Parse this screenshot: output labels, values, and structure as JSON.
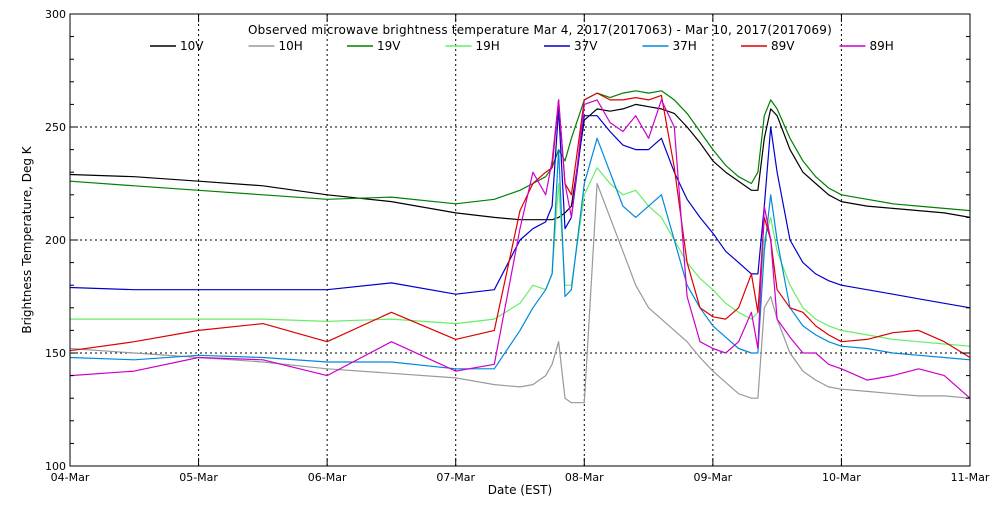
{
  "chart_data": {
    "type": "line",
    "title": "Observed microwave brightness temperature Mar  4, 2017(2017063) - Mar 10, 2017(2017069)",
    "xlabel": "Date (EST)",
    "ylabel": "Brightness Temperature, Deg K",
    "xlim": [
      "2017-03-04",
      "2017-03-11"
    ],
    "ylim": [
      100,
      300
    ],
    "x_ticks": [
      "04-Mar",
      "05-Mar",
      "06-Mar",
      "07-Mar",
      "08-Mar",
      "09-Mar",
      "10-Mar",
      "11-Mar"
    ],
    "y_ticks": [
      100,
      150,
      200,
      250,
      300
    ],
    "grid": "dotted",
    "legend_position": "top",
    "x": [
      4.0,
      4.5,
      5.0,
      5.5,
      6.0,
      6.5,
      7.0,
      7.3,
      7.5,
      7.6,
      7.7,
      7.75,
      7.8,
      7.85,
      7.9,
      8.0,
      8.1,
      8.2,
      8.3,
      8.4,
      8.5,
      8.6,
      8.7,
      8.8,
      8.9,
      9.0,
      9.1,
      9.2,
      9.3,
      9.35,
      9.4,
      9.45,
      9.5,
      9.6,
      9.7,
      9.8,
      9.9,
      10.0,
      10.2,
      10.4,
      10.6,
      10.8,
      11.0
    ],
    "series": [
      {
        "name": "10V",
        "color": "#000000",
        "values": [
          229,
          228,
          226,
          224,
          220,
          217,
          212,
          210,
          209,
          209,
          209,
          209,
          210,
          212,
          215,
          253,
          258,
          257,
          258,
          260,
          259,
          258,
          256,
          250,
          243,
          235,
          230,
          226,
          222,
          222,
          245,
          258,
          255,
          240,
          230,
          225,
          220,
          217,
          215,
          214,
          213,
          212,
          210
        ]
      },
      {
        "name": "10H",
        "color": "#999999",
        "values": [
          152,
          150,
          148,
          146,
          143,
          141,
          139,
          136,
          135,
          136,
          140,
          145,
          155,
          130,
          128,
          128,
          225,
          210,
          195,
          180,
          170,
          165,
          160,
          155,
          148,
          142,
          137,
          132,
          130,
          130,
          170,
          175,
          165,
          150,
          142,
          138,
          135,
          134,
          133,
          132,
          131,
          131,
          130
        ]
      },
      {
        "name": "19V",
        "color": "#008000",
        "values": [
          226,
          224,
          222,
          220,
          218,
          219,
          216,
          218,
          222,
          225,
          228,
          232,
          240,
          235,
          245,
          262,
          265,
          263,
          265,
          266,
          265,
          266,
          262,
          256,
          248,
          240,
          233,
          228,
          225,
          230,
          255,
          262,
          258,
          245,
          235,
          228,
          223,
          220,
          218,
          216,
          215,
          214,
          213
        ]
      },
      {
        "name": "19H",
        "color": "#66ee66",
        "values": [
          165,
          165,
          165,
          165,
          164,
          165,
          163,
          165,
          172,
          180,
          178,
          185,
          225,
          180,
          180,
          220,
          232,
          225,
          220,
          222,
          215,
          210,
          200,
          190,
          183,
          178,
          172,
          168,
          165,
          168,
          200,
          210,
          195,
          180,
          170,
          165,
          162,
          160,
          158,
          156,
          155,
          154,
          153
        ]
      },
      {
        "name": "37V",
        "color": "#0000cc",
        "values": [
          179,
          178,
          178,
          178,
          178,
          181,
          176,
          178,
          200,
          205,
          208,
          215,
          258,
          205,
          210,
          255,
          255,
          248,
          242,
          240,
          240,
          245,
          230,
          218,
          210,
          203,
          195,
          190,
          185,
          185,
          215,
          250,
          230,
          200,
          190,
          185,
          182,
          180,
          178,
          176,
          174,
          172,
          170
        ]
      },
      {
        "name": "37H",
        "color": "#0088dd",
        "values": [
          148,
          147,
          149,
          148,
          146,
          146,
          143,
          143,
          160,
          170,
          178,
          185,
          240,
          175,
          178,
          225,
          245,
          230,
          215,
          210,
          215,
          220,
          200,
          180,
          170,
          162,
          157,
          152,
          150,
          150,
          195,
          220,
          200,
          170,
          162,
          158,
          155,
          153,
          152,
          150,
          149,
          148,
          147
        ]
      },
      {
        "name": "89V",
        "color": "#dd0000",
        "values": [
          151,
          155,
          160,
          163,
          155,
          168,
          156,
          160,
          213,
          225,
          230,
          232,
          262,
          225,
          220,
          262,
          265,
          262,
          262,
          263,
          262,
          264,
          232,
          190,
          170,
          166,
          165,
          170,
          185,
          168,
          210,
          200,
          178,
          170,
          168,
          162,
          158,
          155,
          156,
          159,
          160,
          155,
          148
        ]
      },
      {
        "name": "89H",
        "color": "#cc00cc",
        "values": [
          140,
          142,
          148,
          147,
          140,
          155,
          142,
          145,
          205,
          230,
          220,
          235,
          262,
          225,
          210,
          260,
          262,
          252,
          248,
          255,
          245,
          262,
          250,
          175,
          155,
          152,
          150,
          155,
          168,
          152,
          215,
          200,
          165,
          157,
          150,
          150,
          145,
          143,
          138,
          140,
          143,
          140,
          130
        ]
      }
    ]
  }
}
